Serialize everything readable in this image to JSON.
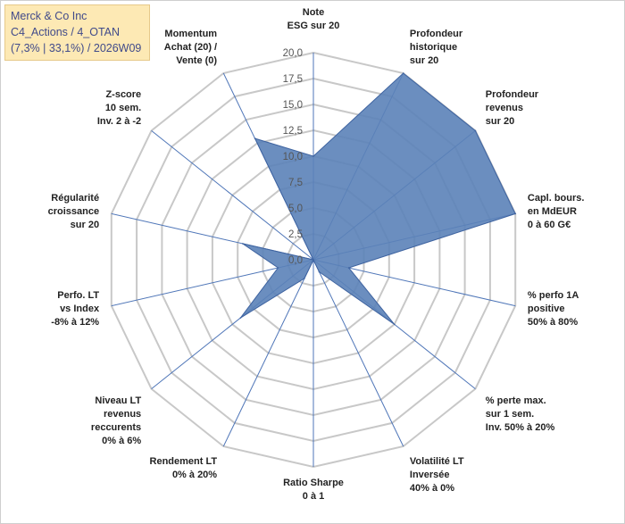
{
  "title_box": {
    "line1": "Merck & Co Inc",
    "line2": "C4_Actions / 4_OTAN",
    "line3": "(7,3% | 33,1%) / 2026W09"
  },
  "colors": {
    "fill": "#5b82b8",
    "stroke": "#3e63a0",
    "grid": "#c8c8c8",
    "spoke": "#4f76b8",
    "title_bg": "#fde9b4",
    "title_text": "#404a8a"
  },
  "chart_data": {
    "type": "radar",
    "rlim": [
      0,
      20
    ],
    "ticks": [
      "0,0",
      "2,5",
      "5,0",
      "7,5",
      "10,0",
      "12,5",
      "15,0",
      "17,5",
      "20,0"
    ],
    "grid": true,
    "axes": [
      [
        "Note",
        "ESG sur 20"
      ],
      [
        "Profondeur",
        "historique",
        "sur 20"
      ],
      [
        "Profondeur",
        "revenus",
        "sur 20"
      ],
      [
        "Capl. bours.",
        "en MdEUR",
        "0 à 60 G€"
      ],
      [
        "% perfo 1A",
        "positive",
        "50% à 80%"
      ],
      [
        "% perte max.",
        "sur 1 sem.",
        "Inv. 50% à 20%"
      ],
      [
        "Volatilité LT",
        "Inversée",
        "40% à 0%"
      ],
      [
        "Ratio Sharpe",
        "0 à 1"
      ],
      [
        "Rendement LT",
        "0% à 20%"
      ],
      [
        "Niveau LT",
        "revenus",
        "reccurents",
        "0% à 6%"
      ],
      [
        "Perfo. LT",
        "vs Index",
        "-8% à 12%"
      ],
      [
        "Régularité",
        "croissance",
        "sur 20"
      ],
      [
        "Z-score",
        "10 sem.",
        "Inv. 2 à -2"
      ],
      [
        "Momentum",
        "Achat (20) /",
        "Vente (0)"
      ]
    ],
    "values": [
      10,
      20,
      20,
      20,
      3.5,
      10,
      1.3,
      0,
      2,
      9,
      3.5,
      7,
      0,
      13
    ]
  }
}
